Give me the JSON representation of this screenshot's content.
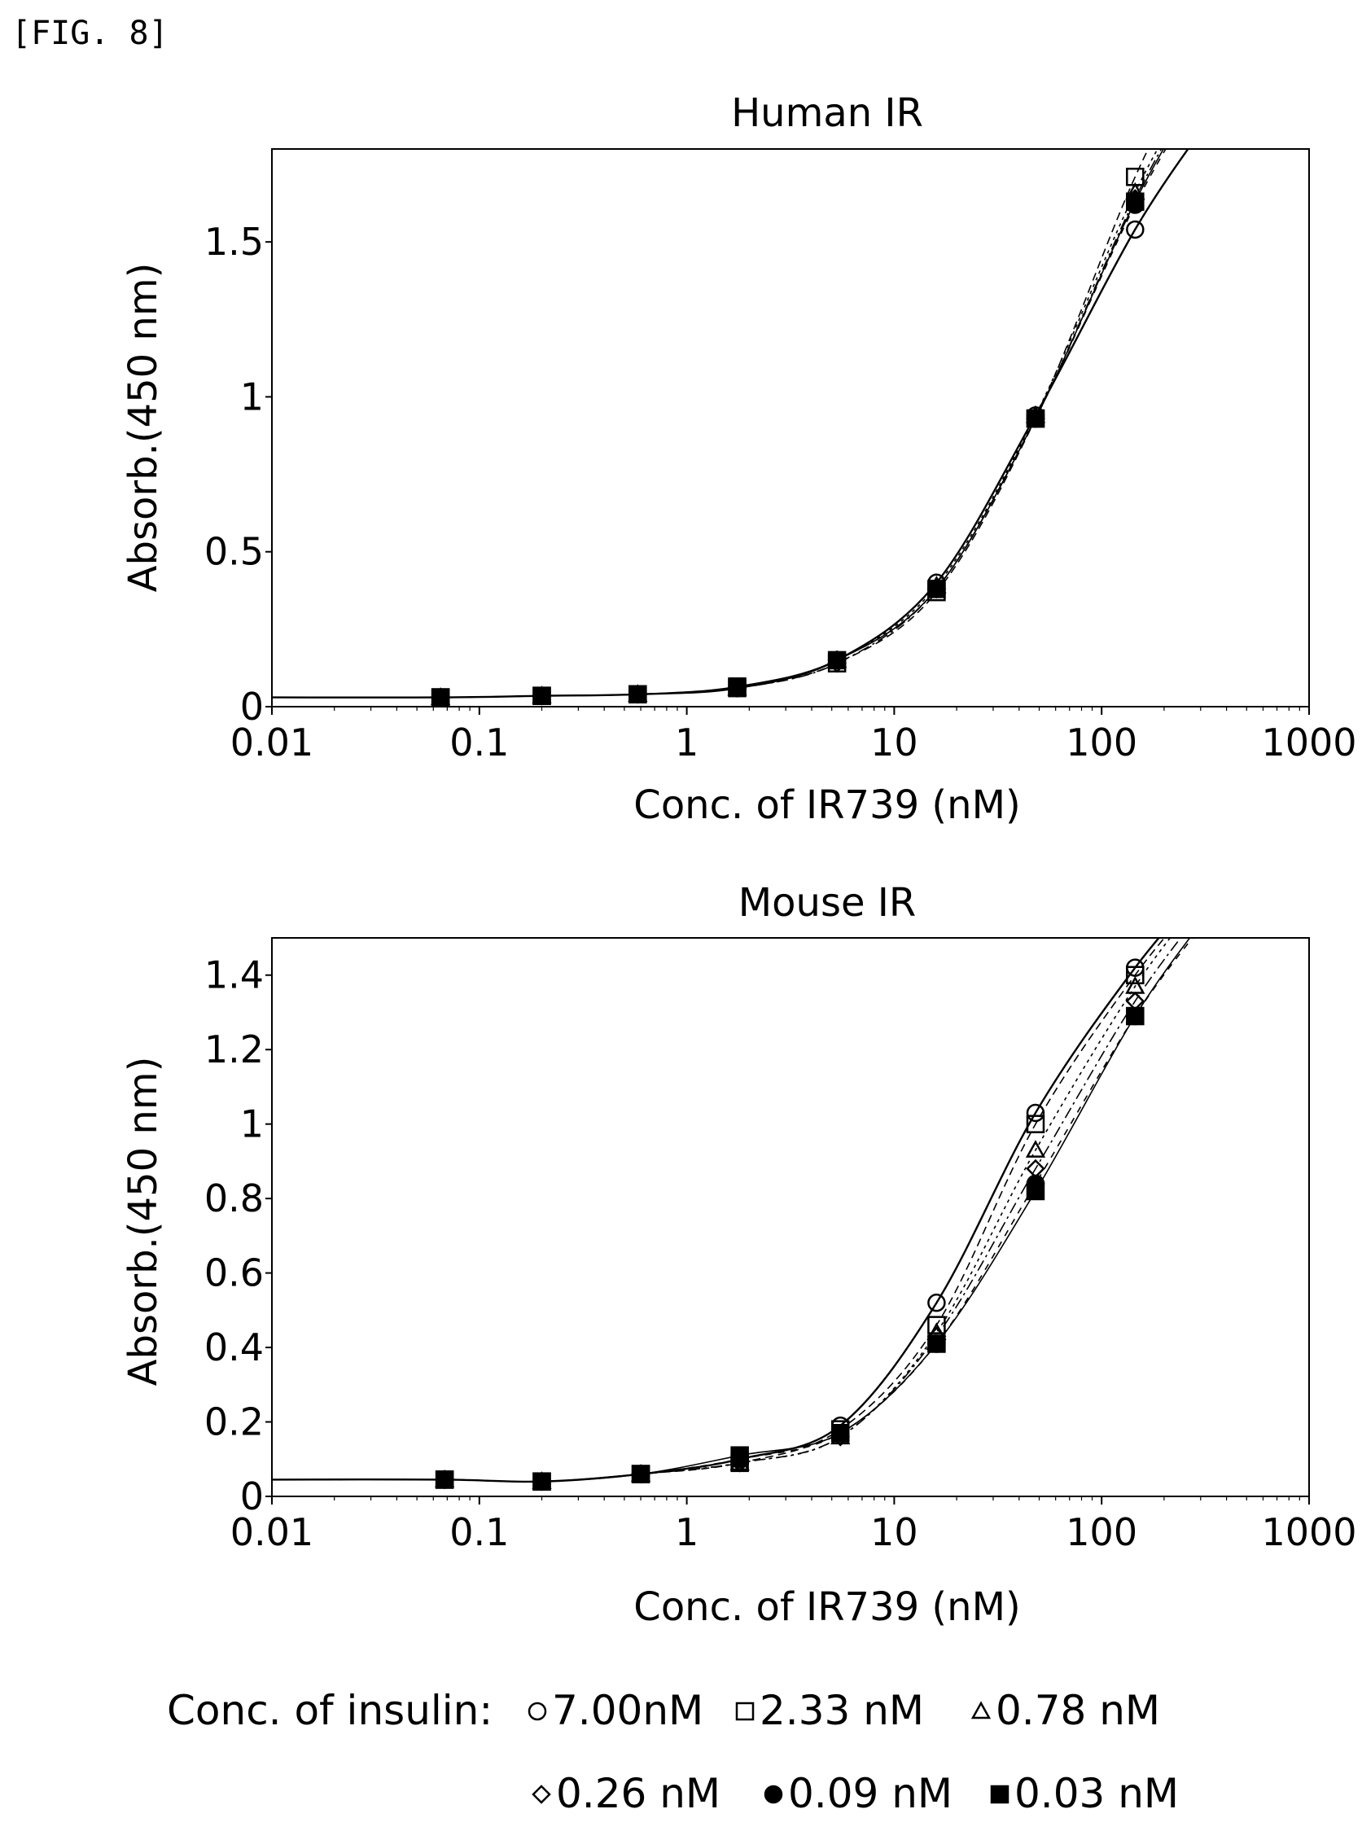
{
  "figure_label": "[FIG. 8]",
  "legend": {
    "prefix": "Conc. of insulin:",
    "entries": [
      {
        "marker": "circle-open",
        "label": "7.00nM"
      },
      {
        "marker": "square-open",
        "label": "2.33  nM"
      },
      {
        "marker": "triangle-open",
        "label": "0.78 nM"
      },
      {
        "marker": "diamond-open",
        "label": "0.26 nM"
      },
      {
        "marker": "circle-filled",
        "label": "0.09  nM"
      },
      {
        "marker": "square-filled",
        "label": "0.03  nM"
      }
    ]
  },
  "chart_data": [
    {
      "type": "scatter",
      "title": "Human IR",
      "xlabel": "Conc. of IR739 (nM)",
      "ylabel": "Absorb.(450 nm)",
      "xscale": "log",
      "xlim": [
        0.01,
        1000
      ],
      "ylim": [
        0,
        1.8
      ],
      "xticks": [
        "0.01",
        "0.1",
        "1",
        "10",
        "100",
        "1000"
      ],
      "yticks": [
        {
          "v": 0,
          "t": "0"
        },
        {
          "v": 0.5,
          "t": "0.5"
        },
        {
          "v": 1,
          "t": "1"
        },
        {
          "v": 1.5,
          "t": "1.5"
        }
      ],
      "x": [
        0.065,
        0.2,
        0.58,
        1.75,
        5.3,
        16,
        48,
        145
      ],
      "series": [
        {
          "name": "7.00nM",
          "marker": "circle-open",
          "values": [
            0.03,
            0.035,
            0.04,
            0.06,
            0.15,
            0.4,
            0.94,
            1.54
          ]
        },
        {
          "name": "2.33  nM",
          "marker": "square-open",
          "values": [
            0.03,
            0.035,
            0.04,
            0.06,
            0.14,
            0.37,
            0.93,
            1.71
          ]
        },
        {
          "name": "0.78 nM",
          "marker": "triangle-open",
          "values": [
            0.03,
            0.035,
            0.04,
            0.06,
            0.15,
            0.39,
            0.94,
            1.66
          ]
        },
        {
          "name": "0.26 nM",
          "marker": "diamond-open",
          "values": [
            0.03,
            0.035,
            0.04,
            0.06,
            0.14,
            0.38,
            0.93,
            1.64
          ]
        },
        {
          "name": "0.09  nM",
          "marker": "circle-filled",
          "values": [
            0.03,
            0.035,
            0.04,
            0.06,
            0.15,
            0.38,
            0.93,
            1.62
          ]
        },
        {
          "name": "0.03  nM",
          "marker": "square-filled",
          "values": [
            0.03,
            0.035,
            0.04,
            0.065,
            0.15,
            0.38,
            0.93,
            1.63
          ]
        }
      ]
    },
    {
      "type": "scatter",
      "title": "Mouse IR",
      "xlabel": "Conc. of IR739 (nM)",
      "ylabel": "Absorb.(450 nm)",
      "xscale": "log",
      "xlim": [
        0.01,
        1000
      ],
      "ylim": [
        0,
        1.5
      ],
      "xticks": [
        "0.01",
        "0.1",
        "1",
        "10",
        "100",
        "1000"
      ],
      "yticks": [
        {
          "v": 0,
          "t": "0"
        },
        {
          "v": 0.2,
          "t": "0.2"
        },
        {
          "v": 0.4,
          "t": "0.4"
        },
        {
          "v": 0.6,
          "t": "0.6"
        },
        {
          "v": 0.8,
          "t": "0.8"
        },
        {
          "v": 1,
          "t": "1"
        },
        {
          "v": 1.2,
          "t": "1.2"
        },
        {
          "v": 1.4,
          "t": "1.4"
        }
      ],
      "x": [
        0.068,
        0.2,
        0.6,
        1.8,
        5.5,
        16,
        48,
        145
      ],
      "series": [
        {
          "name": "7.00nM",
          "marker": "circle-open",
          "values": [
            0.045,
            0.04,
            0.06,
            0.1,
            0.19,
            0.52,
            1.03,
            1.42
          ]
        },
        {
          "name": "2.33  nM",
          "marker": "square-open",
          "values": [
            0.045,
            0.04,
            0.06,
            0.09,
            0.18,
            0.46,
            1.0,
            1.4
          ]
        },
        {
          "name": "0.78 nM",
          "marker": "triangle-open",
          "values": [
            0.045,
            0.04,
            0.06,
            0.09,
            0.16,
            0.44,
            0.93,
            1.37
          ]
        },
        {
          "name": "0.26 nM",
          "marker": "diamond-open",
          "values": [
            0.045,
            0.04,
            0.06,
            0.09,
            0.16,
            0.43,
            0.88,
            1.33
          ]
        },
        {
          "name": "0.09  nM",
          "marker": "circle-filled",
          "values": [
            0.045,
            0.04,
            0.06,
            0.1,
            0.17,
            0.41,
            0.84,
            1.29
          ]
        },
        {
          "name": "0.03  nM",
          "marker": "square-filled",
          "values": [
            0.045,
            0.04,
            0.06,
            0.11,
            0.17,
            0.41,
            0.82,
            1.29
          ]
        }
      ]
    }
  ]
}
